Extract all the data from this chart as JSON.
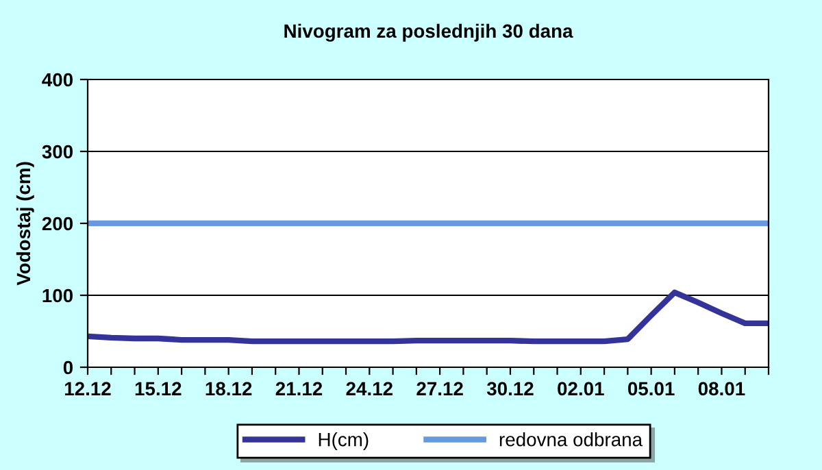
{
  "chart_data": {
    "type": "line",
    "title": "Nivogram za poslednjih 30 dana",
    "ylabel": "Vodostaj (cm)",
    "categories": [
      "12.12",
      null,
      null,
      "15.12",
      null,
      null,
      "18.12",
      null,
      null,
      "21.12",
      null,
      null,
      "24.12",
      null,
      null,
      "27.12",
      null,
      null,
      "30.12",
      null,
      null,
      "02.01",
      null,
      null,
      "05.01",
      null,
      null,
      "08.01",
      null,
      null
    ],
    "series": [
      {
        "name": "H(cm)",
        "color": "#333399",
        "values": [
          43,
          41,
          40,
          40,
          38,
          38,
          38,
          36,
          36,
          36,
          36,
          36,
          36,
          36,
          37,
          37,
          37,
          37,
          37,
          36,
          36,
          36,
          36,
          39,
          72,
          104,
          90,
          75,
          61,
          61
        ]
      },
      {
        "name": "redovna odbrana",
        "color": "#6699dd",
        "values": [
          200,
          200,
          200,
          200,
          200,
          200,
          200,
          200,
          200,
          200,
          200,
          200,
          200,
          200,
          200,
          200,
          200,
          200,
          200,
          200,
          200,
          200,
          200,
          200,
          200,
          200,
          200,
          200,
          200,
          200
        ]
      }
    ],
    "ylim": [
      0,
      400
    ],
    "yticks": [
      0,
      100,
      200,
      300,
      400
    ],
    "grid": "y",
    "legend": "bottom",
    "marker": "none",
    "line_style": "solid"
  }
}
